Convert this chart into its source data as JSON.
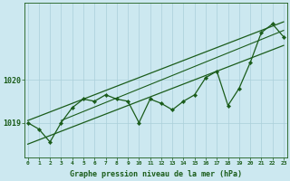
{
  "xlabel": "Graphe pression niveau de la mer (hPa)",
  "bg_color": "#cce8f0",
  "line_color": "#1a5c1a",
  "grid_color": "#aacfda",
  "tick_color": "#1a5c1a",
  "label_color": "#1a5c1a",
  "hours": [
    0,
    1,
    2,
    3,
    4,
    5,
    6,
    7,
    8,
    9,
    10,
    11,
    12,
    13,
    14,
    15,
    16,
    17,
    18,
    19,
    20,
    21,
    22,
    23
  ],
  "pressure": [
    1019.0,
    1018.85,
    1018.55,
    1019.0,
    1019.35,
    1019.55,
    1019.5,
    1019.65,
    1019.55,
    1019.5,
    1019.0,
    1019.55,
    1019.45,
    1019.3,
    1019.5,
    1019.65,
    1020.05,
    1020.2,
    1019.4,
    1019.8,
    1020.4,
    1021.1,
    1021.3,
    1021.0
  ],
  "upper_line_x": [
    0,
    23
  ],
  "upper_line_y": [
    1019.05,
    1021.35
  ],
  "lower_line_x": [
    0,
    23
  ],
  "lower_line_y": [
    1018.5,
    1020.8
  ],
  "mid_line_x": [
    3,
    23
  ],
  "mid_line_y": [
    1019.05,
    1021.15
  ],
  "yticks": [
    1019,
    1020
  ],
  "ylim": [
    1018.2,
    1021.8
  ],
  "xlim": [
    -0.3,
    23.3
  ]
}
